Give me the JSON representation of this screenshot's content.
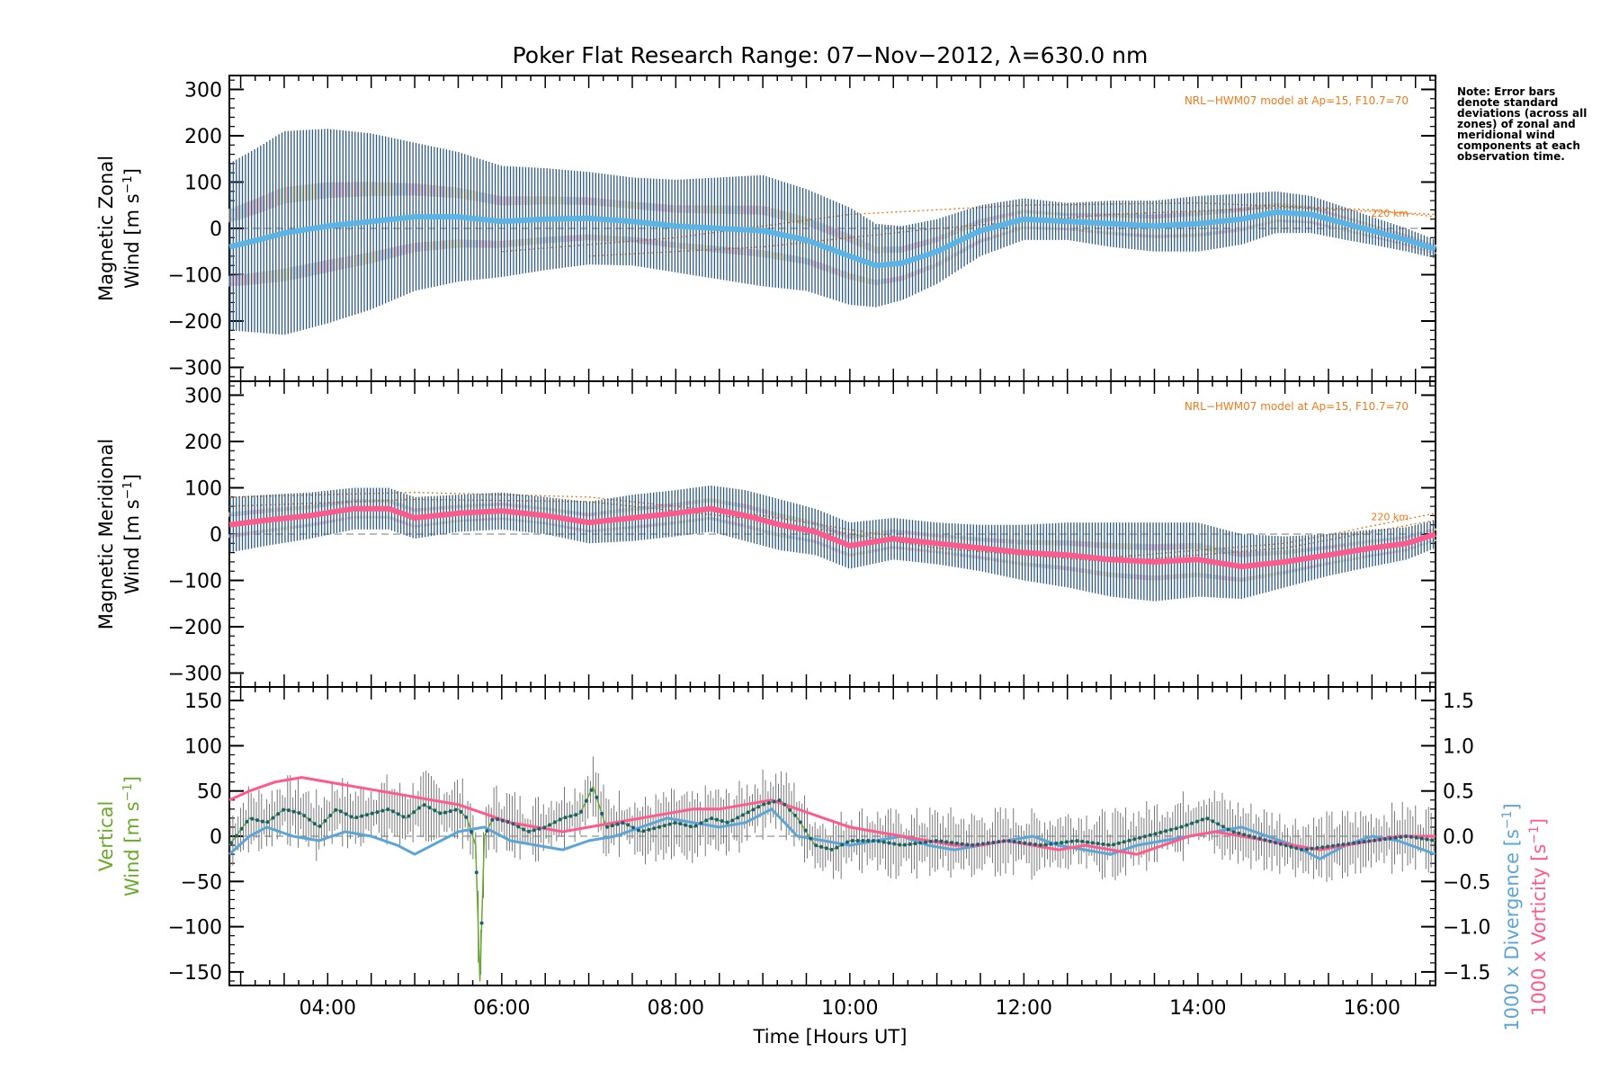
{
  "chart_data": {
    "title": "Poker Flat Research Range: 07−Nov−2012, λ=630.0 nm",
    "xlabel": "Time [Hours UT]",
    "x_ticks": [
      "04:00",
      "06:00",
      "08:00",
      "10:00",
      "12:00",
      "14:00",
      "16:00"
    ],
    "x_tick_hours": [
      4,
      6,
      8,
      10,
      12,
      14,
      16
    ],
    "xlim_hours": [
      2.87,
      16.73
    ],
    "note": "Note: Error bars denote standard deviations (across all zones) of zonal and meridional wind components at each observation time.",
    "panels": [
      {
        "type": "line",
        "id": "zonal",
        "ylabel_line1": "Magnetic Zonal",
        "ylabel_line2": "Wind [m s",
        "ylabel_sup": "−1",
        "ylabel_tail": "]",
        "ylim": [
          -330,
          330
        ],
        "y_ticks": [
          300,
          200,
          100,
          0,
          -100,
          -200,
          -300
        ],
        "model_label": "NRL−HWM07 model at Ap=15, F10.7=70",
        "altitude_label": "220 km",
        "series": [
          {
            "role": "mean wind",
            "color": "#5ab4e5",
            "x": [
              2.87,
              3.2,
              3.5,
              4.0,
              4.5,
              5.0,
              5.5,
              6.0,
              6.5,
              7.0,
              7.5,
              8.0,
              8.5,
              9.0,
              9.5,
              10.0,
              10.3,
              10.6,
              11.0,
              11.5,
              12.0,
              12.5,
              13.0,
              13.5,
              14.0,
              14.5,
              14.9,
              15.3,
              15.7,
              16.0,
              16.4,
              16.73
            ],
            "y": [
              -40,
              -25,
              -10,
              5,
              15,
              25,
              25,
              15,
              20,
              22,
              15,
              5,
              0,
              -5,
              -25,
              -60,
              -80,
              -75,
              -50,
              -5,
              20,
              15,
              10,
              5,
              10,
              20,
              35,
              30,
              10,
              -5,
              -25,
              -45
            ],
            "error": [
              180,
              200,
              220,
              210,
              190,
              160,
              140,
              120,
              110,
              100,
              95,
              100,
              110,
              120,
              110,
              105,
              90,
              80,
              70,
              55,
              45,
              40,
              50,
              55,
              60,
              55,
              45,
              40,
              35,
              30,
              25,
              20
            ]
          }
        ],
        "model_curves": [
          {
            "x": [
              7.0,
              9.0,
              11.0,
              13.0,
              15.0,
              16.73
            ],
            "y": [
              -60,
              -40,
              0,
              30,
              45,
              30
            ]
          },
          {
            "x": [
              6.0,
              8.0,
              10.0,
              12.0,
              14.0,
              16.0,
              16.73
            ],
            "y": [
              -50,
              -20,
              30,
              50,
              55,
              40,
              25
            ]
          }
        ]
      },
      {
        "type": "line",
        "id": "meridional",
        "ylabel_line1": "Magnetic Meridional",
        "ylabel_line2": "Wind [m s",
        "ylabel_sup": "−1",
        "ylabel_tail": "]",
        "ylim": [
          -330,
          330
        ],
        "y_ticks": [
          300,
          200,
          100,
          0,
          -100,
          -200,
          -300
        ],
        "model_label": "NRL−HWM07 model at Ap=15, F10.7=70",
        "altitude_label": "220 km",
        "series": [
          {
            "role": "mean wind",
            "color": "#ff5a8c",
            "x": [
              2.87,
              3.3,
              3.8,
              4.3,
              4.7,
              5.0,
              5.5,
              6.0,
              6.5,
              7.0,
              7.5,
              8.0,
              8.4,
              8.8,
              9.2,
              9.6,
              10.0,
              10.5,
              11.0,
              11.5,
              12.0,
              12.5,
              13.0,
              13.5,
              14.0,
              14.5,
              15.0,
              15.5,
              16.0,
              16.4,
              16.73
            ],
            "y": [
              20,
              30,
              40,
              55,
              55,
              35,
              45,
              50,
              40,
              25,
              35,
              45,
              55,
              40,
              20,
              5,
              -25,
              -10,
              -20,
              -30,
              -40,
              -45,
              -55,
              -60,
              -55,
              -70,
              -60,
              -45,
              -30,
              -20,
              0
            ],
            "error": [
              60,
              55,
              50,
              45,
              45,
              45,
              40,
              40,
              40,
              45,
              50,
              50,
              50,
              55,
              55,
              50,
              50,
              45,
              45,
              50,
              60,
              70,
              80,
              85,
              80,
              70,
              55,
              45,
              40,
              35,
              30
            ]
          }
        ],
        "model_curves": [
          {
            "x": [
              2.87,
              5.0,
              7.0,
              9.0,
              11.0,
              13.0,
              15.0,
              16.73
            ],
            "y": [
              80,
              90,
              80,
              40,
              -20,
              -50,
              -20,
              45
            ]
          },
          {
            "x": [
              2.87,
              5.0,
              7.0,
              9.0,
              11.0,
              13.0,
              15.0,
              16.73
            ],
            "y": [
              60,
              75,
              70,
              30,
              -30,
              -60,
              -30,
              30
            ]
          }
        ]
      },
      {
        "type": "line",
        "id": "vertical",
        "ylabel_line1": "Vertical",
        "ylabel_line2": "Wind [m s",
        "ylabel_sup": "−1",
        "ylabel_tail": "]",
        "ylabel_color": "#6aaa2a",
        "ylim": [
          -165,
          165
        ],
        "y_ticks": [
          150,
          100,
          50,
          0,
          -50,
          -100,
          -150
        ],
        "right_ylabel_1": "1000 x Divergence [s",
        "right_ylabel_1_color": "#5aa6d8",
        "right_ylabel_2": "1000 x Vorticity [s",
        "right_ylabel_2_color": "#ff5a8c",
        "right_ylabel_sup": "−1",
        "right_ylabel_tail": "]",
        "right_ylim": [
          -1.65,
          1.65
        ],
        "right_y_ticks": [
          "1.5",
          "1.0",
          "0.5",
          "0.0",
          "−0.5",
          "−1.0",
          "−1.5"
        ],
        "right_y_tick_values": [
          1.5,
          1.0,
          0.5,
          0.0,
          -0.5,
          -1.0,
          -1.5
        ],
        "series": [
          {
            "name": "Vertical Wind",
            "color": "#6aaa2a",
            "x": [
              2.87,
              3.1,
              3.3,
              3.5,
              3.7,
              3.9,
              4.1,
              4.3,
              4.5,
              4.7,
              4.9,
              5.1,
              5.3,
              5.5,
              5.6,
              5.7,
              5.75,
              5.8,
              5.9,
              6.1,
              6.3,
              6.5,
              6.7,
              6.9,
              7.05,
              7.2,
              7.4,
              7.6,
              7.8,
              8.0,
              8.2,
              8.4,
              8.6,
              8.8,
              9.0,
              9.2,
              9.4,
              9.6,
              9.8,
              10.0,
              10.3,
              10.6,
              11.0,
              11.4,
              11.8,
              12.2,
              12.6,
              13.0,
              13.4,
              13.8,
              14.1,
              14.4,
              14.8,
              15.2,
              15.6,
              16.0,
              16.4,
              16.73
            ],
            "y": [
              -10,
              20,
              15,
              30,
              25,
              10,
              30,
              20,
              25,
              30,
              20,
              35,
              25,
              30,
              20,
              -10,
              -160,
              0,
              20,
              15,
              5,
              10,
              20,
              25,
              55,
              10,
              15,
              5,
              10,
              15,
              10,
              20,
              15,
              25,
              35,
              40,
              20,
              -10,
              -15,
              -5,
              -5,
              -10,
              -5,
              -10,
              -5,
              -10,
              -5,
              -10,
              0,
              10,
              20,
              5,
              -5,
              -15,
              -10,
              -5,
              0,
              -5
            ]
          },
          {
            "name": "1000 x Divergence",
            "color": "#5aa6d8",
            "axis": "right",
            "x": [
              2.87,
              3.1,
              3.3,
              3.6,
              3.9,
              4.2,
              4.5,
              4.8,
              5.0,
              5.2,
              5.5,
              5.8,
              6.1,
              6.4,
              6.7,
              7.0,
              7.3,
              7.6,
              7.9,
              8.2,
              8.5,
              8.8,
              9.1,
              9.4,
              9.7,
              10.0,
              10.3,
              10.6,
              10.9,
              11.2,
              11.5,
              11.8,
              12.1,
              12.4,
              12.7,
              13.0,
              13.3,
              13.6,
              13.9,
              14.2,
              14.5,
              14.8,
              15.1,
              15.4,
              15.7,
              16.0,
              16.3,
              16.73
            ],
            "y": [
              -0.2,
              0.0,
              0.1,
              0.0,
              -0.05,
              0.05,
              0.0,
              -0.1,
              -0.2,
              -0.1,
              0.05,
              0.1,
              -0.05,
              -0.1,
              -0.15,
              -0.05,
              0.0,
              0.1,
              0.2,
              0.15,
              0.1,
              0.15,
              0.3,
              0.0,
              -0.05,
              -0.1,
              -0.05,
              0.0,
              -0.1,
              -0.15,
              -0.1,
              -0.05,
              0.0,
              -0.1,
              -0.15,
              -0.2,
              -0.1,
              -0.05,
              0.0,
              0.05,
              0.1,
              0.0,
              -0.1,
              -0.25,
              -0.1,
              0.0,
              -0.05,
              -0.2
            ]
          },
          {
            "name": "1000 x Vorticity",
            "color": "#ff5a8c",
            "axis": "right",
            "x": [
              2.87,
              3.1,
              3.4,
              3.7,
              4.0,
              4.3,
              4.6,
              4.9,
              5.2,
              5.5,
              5.8,
              6.1,
              6.4,
              6.7,
              7.0,
              7.3,
              7.6,
              7.9,
              8.2,
              8.5,
              8.8,
              9.1,
              9.4,
              9.7,
              10.0,
              10.3,
              10.6,
              10.9,
              11.2,
              11.5,
              11.8,
              12.1,
              12.4,
              12.7,
              13.0,
              13.3,
              13.6,
              13.9,
              14.2,
              14.5,
              14.8,
              15.1,
              15.4,
              15.7,
              16.0,
              16.3,
              16.73
            ],
            "y": [
              0.4,
              0.5,
              0.6,
              0.65,
              0.6,
              0.55,
              0.5,
              0.45,
              0.4,
              0.35,
              0.25,
              0.15,
              0.1,
              0.05,
              0.1,
              0.15,
              0.2,
              0.25,
              0.3,
              0.3,
              0.35,
              0.4,
              0.3,
              0.2,
              0.1,
              0.05,
              0.0,
              -0.05,
              -0.1,
              -0.1,
              -0.05,
              -0.1,
              -0.15,
              -0.1,
              -0.15,
              -0.2,
              -0.1,
              0.0,
              0.05,
              0.0,
              -0.05,
              -0.1,
              -0.15,
              -0.1,
              -0.05,
              0.0,
              0.0
            ]
          }
        ]
      }
    ]
  }
}
